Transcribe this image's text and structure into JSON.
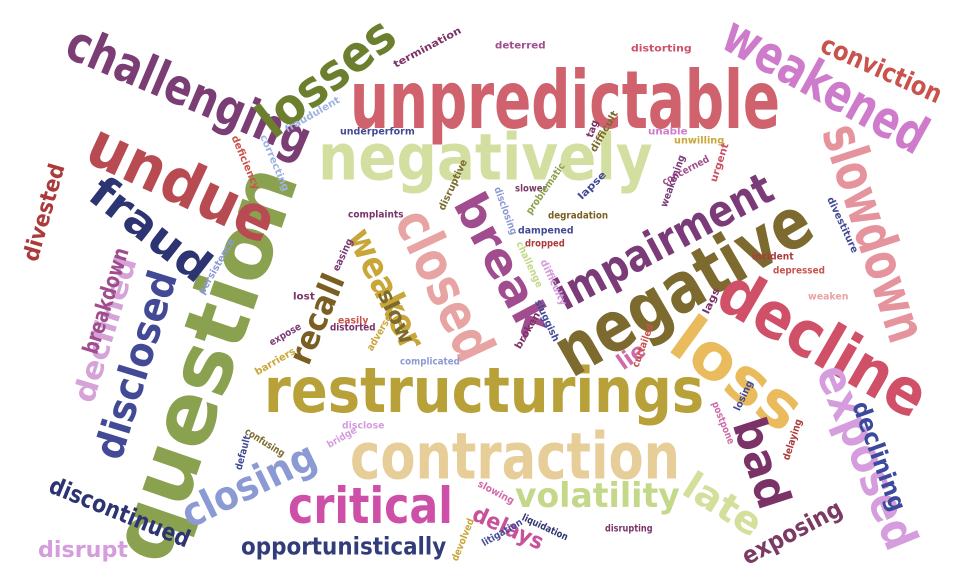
{
  "title": "Negative sentiment word cloud",
  "words": [
    {
      "text": "unpredictable",
      "color": "#d0626e"
    },
    {
      "text": "question",
      "color": "#8aa14f"
    },
    {
      "text": "restructurings",
      "color": "#b8a138"
    },
    {
      "text": "negatively",
      "color": "#d3dfa0"
    },
    {
      "text": "negative",
      "color": "#7d6a2e"
    },
    {
      "text": "contraction",
      "color": "#e7cd98"
    },
    {
      "text": "challenging",
      "color": "#7a3e74"
    },
    {
      "text": "decline",
      "color": "#cf5067"
    },
    {
      "text": "slowdown",
      "color": "#e5949d"
    },
    {
      "text": "weakened",
      "color": "#cf7bcc"
    },
    {
      "text": "undue",
      "color": "#b84b52"
    },
    {
      "text": "losses",
      "color": "#6b7f2e"
    },
    {
      "text": "impairment",
      "color": "#7b3a78"
    },
    {
      "text": "closed",
      "color": "#e8a3a3"
    },
    {
      "text": "break",
      "color": "#a04c8e"
    },
    {
      "text": "loss",
      "color": "#e9bb5c"
    },
    {
      "text": "exposed",
      "color": "#d59ddd"
    },
    {
      "text": "critical",
      "color": "#ce4fa7"
    },
    {
      "text": "closing",
      "color": "#8c9ad4"
    },
    {
      "text": "fraud",
      "color": "#2d3472"
    },
    {
      "text": "disclosed",
      "color": "#434a95"
    },
    {
      "text": "bad",
      "color": "#7b3367"
    },
    {
      "text": "volatility",
      "color": "#c3d888"
    },
    {
      "text": "declined",
      "color": "#d5a3d8"
    },
    {
      "text": "weaker",
      "color": "#c9a638"
    },
    {
      "text": "recall",
      "color": "#7a5e22"
    },
    {
      "text": "late",
      "color": "#d3df9a"
    },
    {
      "text": "conviction",
      "color": "#c9534c"
    },
    {
      "text": "opportunistically",
      "color": "#333c7a"
    },
    {
      "text": "discontinued",
      "color": "#2d3472"
    },
    {
      "text": "breakdown",
      "color": "#a04c8e"
    },
    {
      "text": "declining",
      "color": "#3b4a9a"
    },
    {
      "text": "exposing",
      "color": "#7a3a63"
    },
    {
      "text": "divested",
      "color": "#ab3a3a"
    },
    {
      "text": "disrupt",
      "color": "#d59ddd"
    },
    {
      "text": "delays",
      "color": "#c7519a"
    },
    {
      "text": "slow",
      "color": "#7d6a2e"
    },
    {
      "text": "lie",
      "color": "#d06aaa"
    },
    {
      "text": "termination",
      "color": "#7b3367"
    },
    {
      "text": "deterred",
      "color": "#a04c8e"
    },
    {
      "text": "distorting",
      "color": "#cf5067"
    },
    {
      "text": "fraudulent",
      "color": "#9fb2e0"
    },
    {
      "text": "underperform",
      "color": "#434a95"
    },
    {
      "text": "tag",
      "color": "#7b3367"
    },
    {
      "text": "difficult",
      "color": "#7d6a2e"
    },
    {
      "text": "unable",
      "color": "#cf7bcc"
    },
    {
      "text": "unwilling",
      "color": "#c9a638"
    },
    {
      "text": "deficiency",
      "color": "#c9534c"
    },
    {
      "text": "correcting",
      "color": "#9fb2e0"
    },
    {
      "text": "concerned",
      "color": "#a04c8e"
    },
    {
      "text": "weakening",
      "color": "#7b3a78"
    },
    {
      "text": "urgent",
      "color": "#cf5067"
    },
    {
      "text": "disruptive",
      "color": "#7d6a2e"
    },
    {
      "text": "complaints",
      "color": "#7b3367"
    },
    {
      "text": "slower",
      "color": "#7a3a63"
    },
    {
      "text": "problematic",
      "color": "#8aa14f"
    },
    {
      "text": "lapse",
      "color": "#434a95"
    },
    {
      "text": "disclosing",
      "color": "#8c9ad4"
    },
    {
      "text": "degradation",
      "color": "#7a5e22"
    },
    {
      "text": "dampened",
      "color": "#434a95"
    },
    {
      "text": "persistence",
      "color": "#8c9ad4"
    },
    {
      "text": "easing",
      "color": "#7b3a78"
    },
    {
      "text": "dropped",
      "color": "#ab3a3a"
    },
    {
      "text": "challenge",
      "color": "#c3d888"
    },
    {
      "text": "difficulty",
      "color": "#d59ddd"
    },
    {
      "text": "incident",
      "color": "#ab3a3a"
    },
    {
      "text": "depressed",
      "color": "#c9534c"
    },
    {
      "text": "divestiture",
      "color": "#434a95"
    },
    {
      "text": "weaken",
      "color": "#e8a3a3"
    },
    {
      "text": "lags",
      "color": "#7b3367"
    },
    {
      "text": "lost",
      "color": "#7b3367"
    },
    {
      "text": "expose",
      "color": "#7b3a78"
    },
    {
      "text": "easily",
      "color": "#c9534c"
    },
    {
      "text": "distorted",
      "color": "#7b3367"
    },
    {
      "text": "adverse",
      "color": "#c9a638"
    },
    {
      "text": "broken",
      "color": "#7b3367"
    },
    {
      "text": "sluggish",
      "color": "#434a95"
    },
    {
      "text": "curtailed",
      "color": "#c9534c"
    },
    {
      "text": "complicated",
      "color": "#8c9ad4"
    },
    {
      "text": "barriers",
      "color": "#c9a638"
    },
    {
      "text": "confusing",
      "color": "#7d6a2e"
    },
    {
      "text": "disclose",
      "color": "#d59ddd"
    },
    {
      "text": "default",
      "color": "#434a95"
    },
    {
      "text": "bridge",
      "color": "#d59ddd"
    },
    {
      "text": "losing",
      "color": "#434a95"
    },
    {
      "text": "postpone",
      "color": "#d06aaa"
    },
    {
      "text": "delaying",
      "color": "#ab3a3a"
    },
    {
      "text": "slowing",
      "color": "#d06aaa"
    },
    {
      "text": "liquidation",
      "color": "#2d3472"
    },
    {
      "text": "disrupting",
      "color": "#7b3367"
    },
    {
      "text": "litigation",
      "color": "#434a95"
    },
    {
      "text": "devolved",
      "color": "#c9a638"
    }
  ]
}
